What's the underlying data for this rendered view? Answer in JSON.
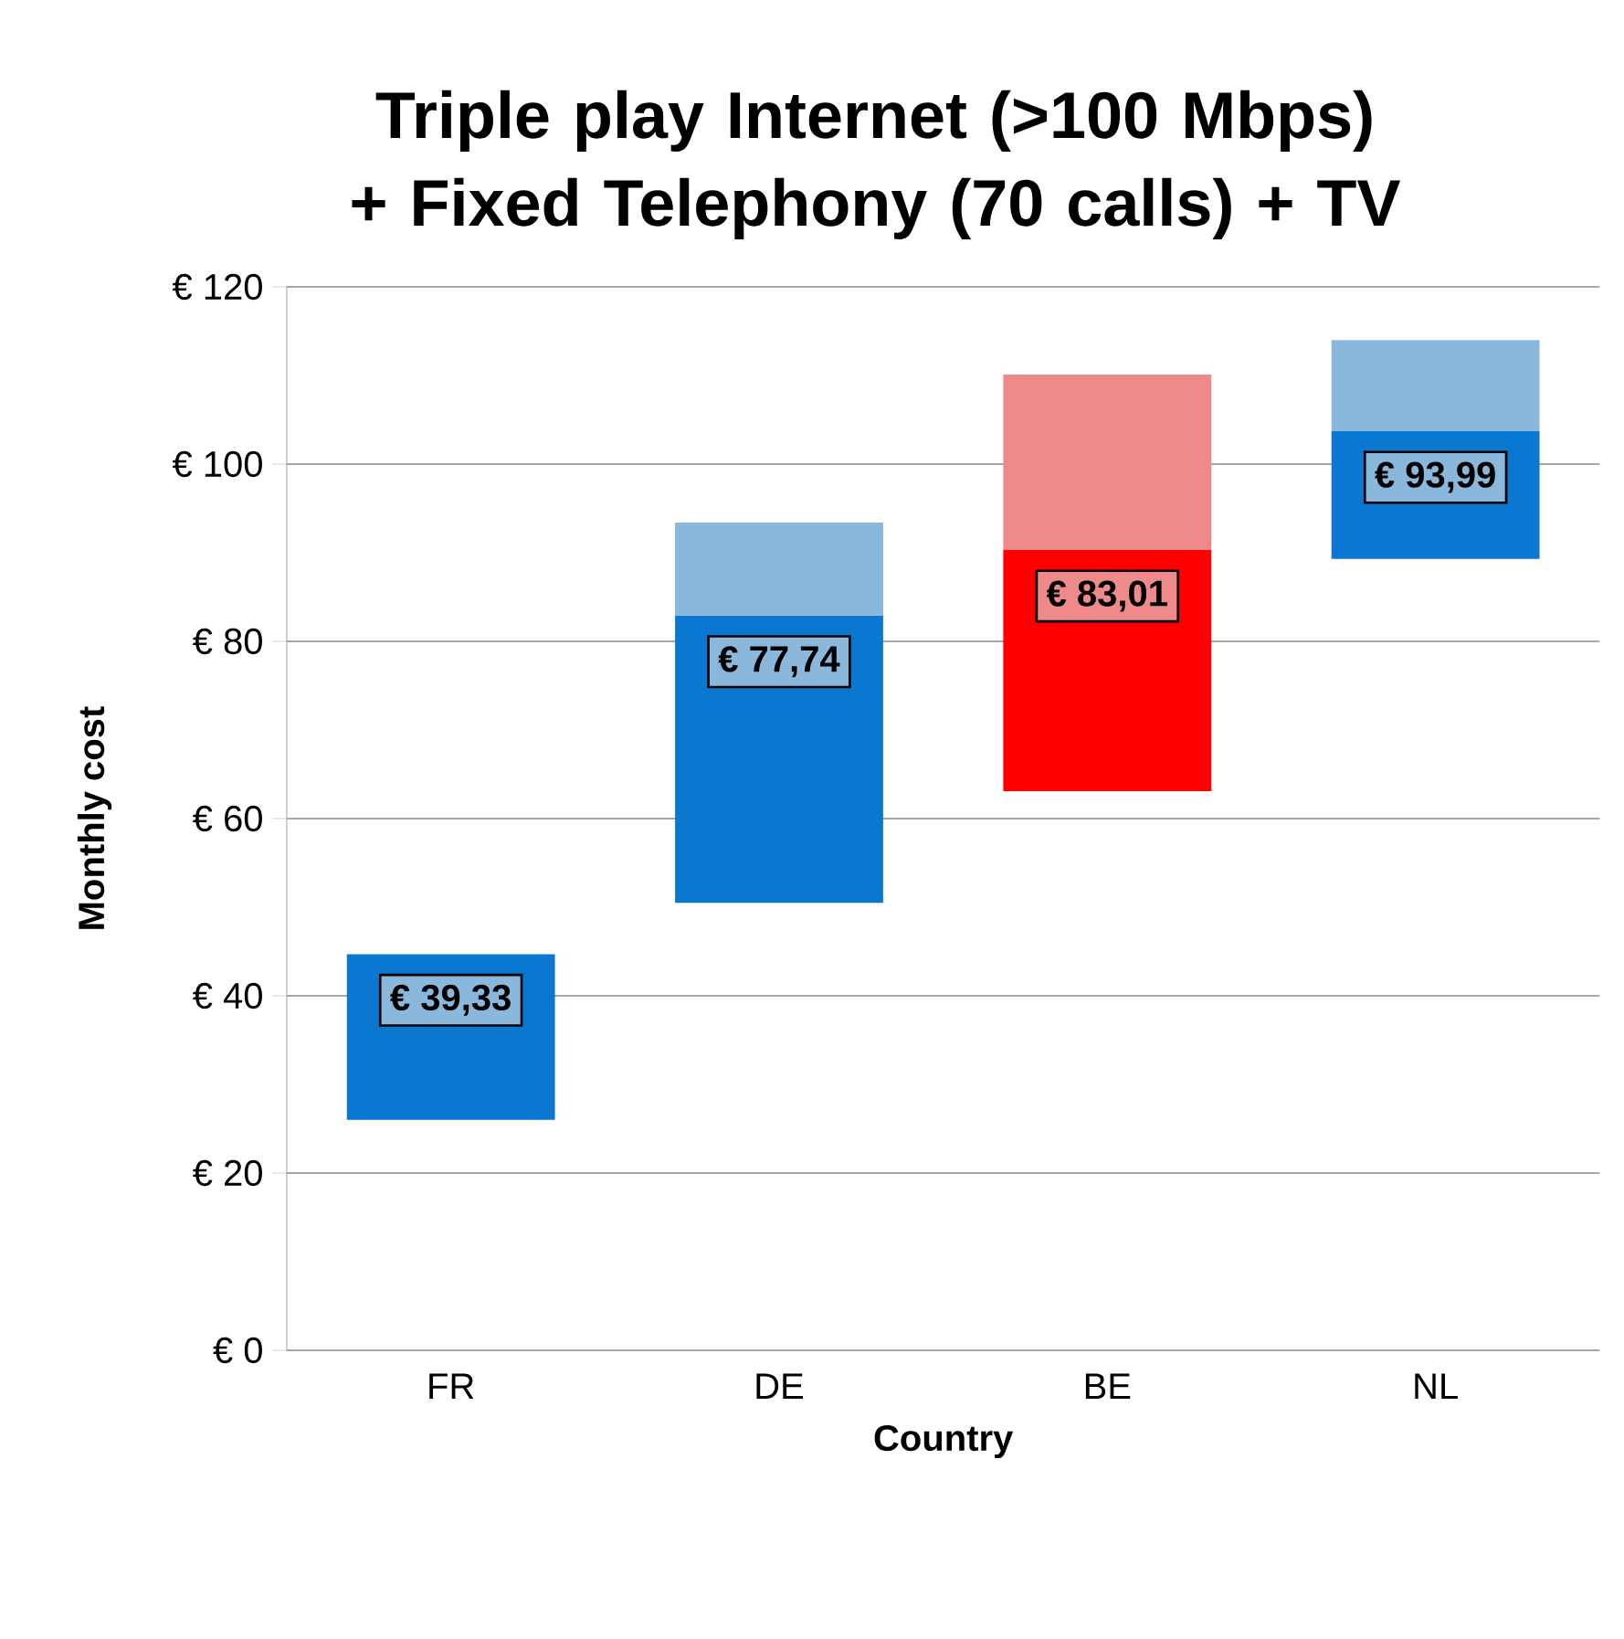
{
  "chart_data": {
    "type": "bar",
    "title": "Triple play Internet (>100 Mbps) + Fixed Telephony (70 calls) + TV",
    "xlabel": "Country",
    "ylabel": "Monthly cost",
    "categories": [
      "FR",
      "DE",
      "BE",
      "NL"
    ],
    "series": [
      {
        "colors": [
          "#0a77d0",
          "#0a77d0",
          "#ff0000",
          "#0a77d0"
        ],
        "base": [
          26.0,
          50.5,
          63.1,
          89.3
        ],
        "values": [
          18.7,
          32.4,
          27.2,
          14.4
        ]
      },
      {
        "colors": [
          "#8ab8dd",
          "#8ab8dd",
          "#ee8a8a",
          "#8ab8dd"
        ],
        "base": [
          null,
          82.9,
          90.3,
          103.7
        ],
        "values": [
          null,
          10.5,
          19.8,
          10.3
        ]
      }
    ],
    "ylim": [
      0,
      120
    ],
    "yticks": [
      {
        "value": 0,
        "label": "€ 0"
      },
      {
        "value": 20,
        "label": "€ 20"
      },
      {
        "value": 40,
        "label": "€ 40"
      },
      {
        "value": 60,
        "label": "€ 60"
      },
      {
        "value": 80,
        "label": "€ 80"
      },
      {
        "value": 100,
        "label": "€ 100"
      },
      {
        "value": 120,
        "label": "€ 120"
      }
    ],
    "grid": "y",
    "annotations": [
      "€ 39,33",
      "€ 77,74",
      "€ 83,01",
      "€ 93,99"
    ]
  }
}
